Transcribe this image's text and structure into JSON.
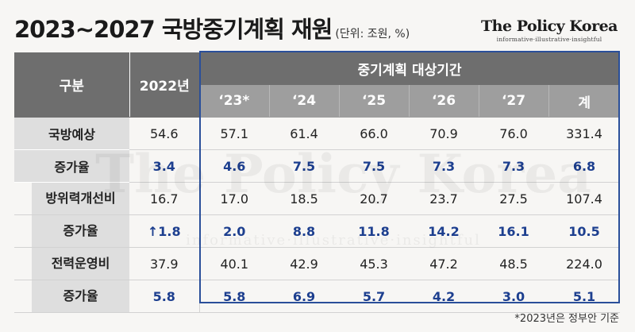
{
  "title": "2023~2027 국방중기계획 재원",
  "unit": "(단위: 조원, %)",
  "brand": {
    "name": "The Policy Korea",
    "tagline": "informative·illustrative·insightful"
  },
  "watermark": {
    "name": "The Policy Korea",
    "tagline": "informative·illustrative·insightful"
  },
  "table": {
    "col_category": "구분",
    "col_2022": "2022년",
    "plan_header": "중기계획 대상기간",
    "plan_years": [
      "‘23*",
      "‘24",
      "‘25",
      "‘26",
      "‘27",
      "계"
    ],
    "rows": [
      {
        "label": "국방예상",
        "v2022": "54.6",
        "values": [
          "57.1",
          "61.4",
          "66.0",
          "70.9",
          "76.0",
          "331.4"
        ]
      },
      {
        "label": "증가율",
        "v2022": "3.4",
        "values": [
          "4.6",
          "7.5",
          "7.5",
          "7.3",
          "7.3",
          "6.8"
        ]
      },
      {
        "label": "방위력개선비",
        "v2022": "16.7",
        "values": [
          "17.0",
          "18.5",
          "20.7",
          "23.7",
          "27.5",
          "107.4"
        ]
      },
      {
        "label": "증가율",
        "v2022": "↑1.8",
        "values": [
          "2.0",
          "8.8",
          "11.8",
          "14.2",
          "16.1",
          "10.5"
        ]
      },
      {
        "label": "전력운영비",
        "v2022": "37.9",
        "values": [
          "40.1",
          "42.9",
          "45.3",
          "47.2",
          "48.5",
          "224.0"
        ]
      },
      {
        "label": "증가율",
        "v2022": "5.8",
        "values": [
          "5.8",
          "6.9",
          "5.7",
          "4.2",
          "3.0",
          "5.1"
        ]
      }
    ]
  },
  "footnote": "*2023년은 정부안 기준",
  "colors": {
    "accent_blue": "#1d3f8f",
    "frame_blue": "#2a4f9a",
    "header_dark": "#6e6e6e",
    "header_light": "#9e9e9e",
    "label_bg": "#dedede"
  }
}
